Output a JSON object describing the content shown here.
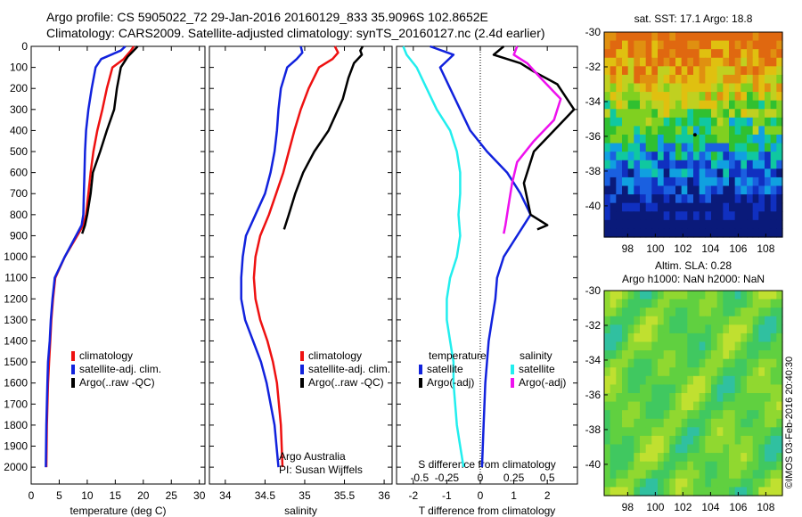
{
  "header": {
    "line1": "Argo profile: CS 5905022_72 29-Jan-2016 20160129_833 35.9096S 102.8652E",
    "line2": "Climatology: CARS2009. Satellite-adjusted climatology: synTS_20160127.nc (2.4d earlier)"
  },
  "credit": "©IMOS 03-Feb-2016 20:40:30",
  "colors": {
    "climatology": "#ee1111",
    "satellite": "#1122dd",
    "argo": "#000000",
    "s_satellite": "#22eeee",
    "s_argo": "#ee11ee"
  },
  "chart_data": [
    {
      "type": "line",
      "panel": "temperature",
      "xlabel": "temperature (deg C)",
      "ylabel": "",
      "xlim": [
        0,
        31
      ],
      "xticks": [
        0,
        5,
        10,
        15,
        20,
        25,
        30
      ],
      "ylim": [
        2080,
        0
      ],
      "yticks": [
        0,
        100,
        200,
        300,
        400,
        500,
        600,
        700,
        800,
        900,
        1000,
        1100,
        1200,
        1300,
        1400,
        1500,
        1600,
        1700,
        1800,
        1900,
        2000
      ],
      "y_reversed": true,
      "legend": [
        "climatology",
        "satellite-adj. clim.",
        "Argo(..raw -QC)"
      ],
      "legend_position": "lower-right",
      "series": [
        {
          "name": "climatology",
          "color": "#ee1111",
          "x": [
            18.3,
            17.8,
            16.5,
            14.5,
            13.5,
            12.7,
            11.8,
            11.1,
            10.6,
            10.2,
            9.8,
            9.3,
            8.2,
            6.0,
            4.3,
            3.9,
            3.6,
            3.4,
            3.2,
            3.0,
            2.8,
            2.7
          ],
          "y": [
            0,
            20,
            60,
            100,
            200,
            300,
            400,
            500,
            600,
            700,
            800,
            850,
            900,
            1000,
            1100,
            1200,
            1300,
            1400,
            1500,
            1600,
            1800,
            2000
          ]
        },
        {
          "name": "satellite-adj. clim.",
          "color": "#1122dd",
          "x": [
            16.8,
            16.0,
            12.5,
            11.5,
            10.8,
            10.2,
            9.8,
            9.6,
            9.5,
            9.4,
            9.3,
            9.0,
            8.0,
            6.0,
            4.2,
            3.8,
            3.5,
            3.3,
            3.0,
            2.9,
            2.7,
            2.6
          ],
          "y": [
            0,
            20,
            60,
            100,
            200,
            300,
            400,
            500,
            600,
            700,
            800,
            850,
            900,
            1000,
            1100,
            1200,
            1300,
            1400,
            1500,
            1600,
            1800,
            2000
          ]
        },
        {
          "name": "Argo(..raw -QC)",
          "color": "#000000",
          "x": [
            19.0,
            18.3,
            17.2,
            16.0,
            15.3,
            14.8,
            13.5,
            12.3,
            11.0,
            10.6,
            10.0,
            9.6,
            9.1
          ],
          "y": [
            0,
            20,
            50,
            100,
            200,
            300,
            400,
            500,
            600,
            700,
            800,
            850,
            890
          ]
        }
      ]
    },
    {
      "type": "line",
      "panel": "salinity",
      "xlabel": "salinity",
      "xlim": [
        33.8,
        36.1
      ],
      "xticks": [
        34,
        34.5,
        35,
        35.5,
        36
      ],
      "ylim": [
        2080,
        0
      ],
      "y_reversed": true,
      "legend": [
        "climatology",
        "satellite-adj. clim.",
        "Argo(..raw -QC)"
      ],
      "legend_position": "lower-right",
      "annotation": [
        "Argo Australia",
        "PI: Susan Wijffels"
      ],
      "series": [
        {
          "name": "climatology",
          "color": "#ee1111",
          "x": [
            35.38,
            35.42,
            35.35,
            35.18,
            35.05,
            34.95,
            34.87,
            34.8,
            34.73,
            34.64,
            34.55,
            34.44,
            34.38,
            34.36,
            34.38,
            34.44,
            34.53,
            34.6,
            34.65,
            34.7,
            34.72
          ],
          "y": [
            0,
            30,
            60,
            100,
            200,
            300,
            400,
            500,
            600,
            700,
            800,
            900,
            1000,
            1100,
            1200,
            1300,
            1400,
            1500,
            1600,
            1800,
            2000
          ]
        },
        {
          "name": "satellite-adj. clim.",
          "color": "#1122dd",
          "x": [
            34.95,
            34.97,
            34.9,
            34.78,
            34.7,
            34.67,
            34.65,
            34.62,
            34.57,
            34.5,
            34.38,
            34.26,
            34.22,
            34.2,
            34.2,
            34.25,
            34.35,
            34.45,
            34.52,
            34.62,
            34.67
          ],
          "y": [
            0,
            30,
            60,
            100,
            200,
            300,
            400,
            500,
            600,
            700,
            800,
            900,
            1000,
            1100,
            1200,
            1300,
            1400,
            1500,
            1600,
            1800,
            2000
          ]
        },
        {
          "name": "Argo(..raw -QC)",
          "color": "#000000",
          "x": [
            35.73,
            35.7,
            35.72,
            35.62,
            35.55,
            35.48,
            35.3,
            35.12,
            34.98,
            34.88,
            34.8,
            34.74
          ],
          "y": [
            0,
            20,
            40,
            80,
            150,
            250,
            400,
            500,
            600,
            700,
            800,
            870
          ]
        }
      ]
    },
    {
      "type": "line",
      "panel": "difference",
      "xlabel": "T difference from climatology",
      "xlabel_top": "S difference from climatology",
      "xlim_T": [
        -2.5,
        2.9
      ],
      "xticks_T": [
        -2,
        -1,
        0,
        1,
        2
      ],
      "xticklabels_S": [
        "-0.5",
        "-0.25",
        "0",
        "0.25",
        "0.5"
      ],
      "xticks_S_at_T": [
        -2,
        -1,
        0,
        1,
        2
      ],
      "ylim": [
        2080,
        0
      ],
      "y_reversed": true,
      "legend_title_temperature": "temperature",
      "legend_title_salinity": "salinity",
      "legend_temperature": [
        "satellite",
        "Argo(-adj)"
      ],
      "legend_salinity": [
        "satellite",
        "Argo(-adj)"
      ],
      "legend_position": "lower-center",
      "series": [
        {
          "name": "T satellite",
          "color": "#1122dd",
          "x": [
            -1.5,
            -0.8,
            -1.2,
            -0.9,
            -0.6,
            -0.3,
            0.2,
            0.8,
            1.2,
            1.5,
            1.1,
            0.7,
            0.5,
            0.45,
            0.35,
            0.25,
            0.2,
            0.15,
            0.1,
            0.05
          ],
          "y": [
            0,
            40,
            100,
            200,
            300,
            400,
            500,
            600,
            700,
            800,
            900,
            1000,
            1100,
            1200,
            1300,
            1400,
            1500,
            1600,
            1800,
            2000
          ]
        },
        {
          "name": "T Argo(-adj)",
          "color": "#000000",
          "x": [
            0.7,
            0.4,
            1.2,
            1.6,
            2.3,
            2.8,
            2.2,
            1.6,
            1.3,
            1.5,
            2.0,
            1.7
          ],
          "y": [
            0,
            40,
            80,
            120,
            180,
            300,
            400,
            500,
            650,
            800,
            850,
            870
          ]
        },
        {
          "name": "S satellite",
          "color": "#22eeee",
          "x": [
            -2.3,
            -2.2,
            -1.9,
            -1.6,
            -1.3,
            -0.9,
            -0.7,
            -0.6,
            -0.6,
            -0.65,
            -0.6,
            -0.7,
            -0.9,
            -1.0,
            -1.0,
            -0.9,
            -0.8,
            -0.8,
            -0.7,
            -0.6,
            -0.5
          ],
          "y": [
            0,
            40,
            100,
            200,
            300,
            400,
            500,
            600,
            700,
            800,
            900,
            1000,
            1100,
            1200,
            1300,
            1400,
            1500,
            1600,
            1800,
            1900,
            2000
          ]
        },
        {
          "name": "S Argo(-adj)",
          "color": "#ee11ee",
          "x": [
            1.1,
            1.0,
            1.4,
            1.8,
            2.4,
            2.2,
            1.6,
            1.1,
            0.95,
            0.85,
            0.75,
            0.7
          ],
          "y": [
            0,
            40,
            80,
            150,
            250,
            350,
            450,
            550,
            650,
            750,
            850,
            890
          ]
        }
      ]
    },
    {
      "type": "heatmap",
      "panel": "sst_map",
      "title": "sat. SST: 17.1  Argo: 18.8",
      "xlim": [
        96.3,
        109.2
      ],
      "ylim": [
        -41.8,
        -30
      ],
      "xticks": [
        98,
        100,
        102,
        104,
        106,
        108
      ],
      "yticks": [
        -30,
        -32,
        -34,
        -36,
        -38,
        -40
      ],
      "profile_location": [
        102.87,
        -35.91
      ]
    },
    {
      "type": "heatmap",
      "panel": "sla_map",
      "title_line1": "Altim. SLA: 0.28",
      "title_line2": "Argo h1000: NaN  h2000: NaN",
      "xlim": [
        96.3,
        109.2
      ],
      "ylim": [
        -41.8,
        -30
      ],
      "xticks": [
        98,
        100,
        102,
        104,
        106,
        108
      ],
      "yticks": [
        -30,
        -32,
        -34,
        -36,
        -38,
        -40
      ]
    }
  ]
}
